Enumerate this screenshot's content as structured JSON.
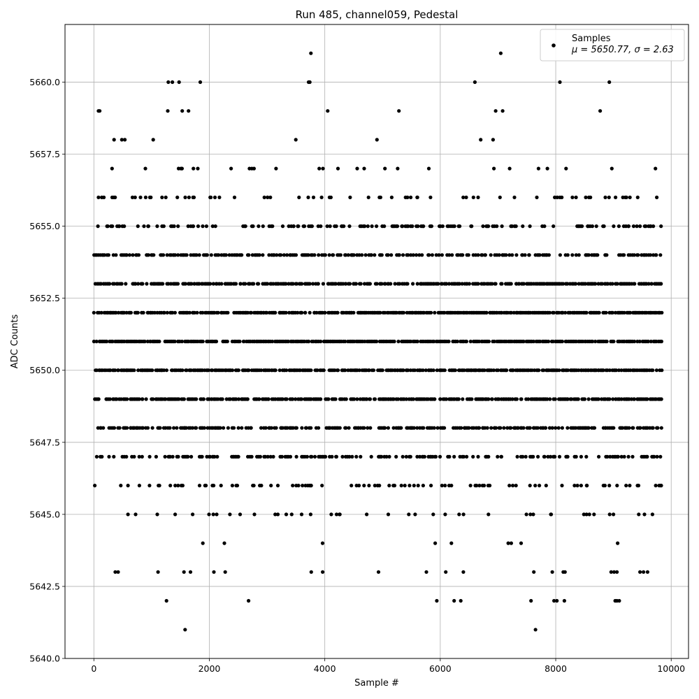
{
  "chart_data": {
    "type": "scatter",
    "title": "Run 485, channel059, Pedestal",
    "xlabel": "Sample #",
    "ylabel": "ADC Counts",
    "xlim": [
      -500,
      10300
    ],
    "ylim": [
      5640.0,
      5662.0
    ],
    "x_ticks": [
      0,
      2000,
      4000,
      6000,
      8000,
      10000
    ],
    "x_tick_labels": [
      "0",
      "2000",
      "4000",
      "6000",
      "8000",
      "10000"
    ],
    "y_ticks": [
      5640.0,
      5642.5,
      5645.0,
      5647.5,
      5650.0,
      5652.5,
      5655.0,
      5657.5,
      5660.0
    ],
    "y_tick_labels": [
      "5640.0",
      "5642.5",
      "5645.0",
      "5647.5",
      "5650.0",
      "5652.5",
      "5655.0",
      "5657.5",
      "5660.0"
    ],
    "grid": true,
    "legend_position": "top-right",
    "series": [
      {
        "name": "Samples",
        "stats": "μ = 5650.77, σ = 2.63",
        "color": "#000000",
        "marker": "circle",
        "n_samples": 9830,
        "x_range": [
          0,
          9830
        ],
        "mean": 5650.77,
        "std": 2.63,
        "value_levels": [
          {
            "y": 5661,
            "density": 0.002
          },
          {
            "y": 5660,
            "density": 0.005
          },
          {
            "y": 5659,
            "density": 0.01
          },
          {
            "y": 5658,
            "density": 0.04
          },
          {
            "y": 5657,
            "density": 0.09
          },
          {
            "y": 5656,
            "density": 0.18
          },
          {
            "y": 5655,
            "density": 0.35
          },
          {
            "y": 5654,
            "density": 0.6
          },
          {
            "y": 5653,
            "density": 0.85
          },
          {
            "y": 5652,
            "density": 1.0
          },
          {
            "y": 5651,
            "density": 1.0
          },
          {
            "y": 5650,
            "density": 1.0
          },
          {
            "y": 5649,
            "density": 0.9
          },
          {
            "y": 5648,
            "density": 0.7
          },
          {
            "y": 5647,
            "density": 0.45
          },
          {
            "y": 5646,
            "density": 0.25
          },
          {
            "y": 5645,
            "density": 0.1
          },
          {
            "y": 5644,
            "density": 0.04
          },
          {
            "y": 5643,
            "density": 0.015
          },
          {
            "y": 5642,
            "density": 0.006
          },
          {
            "y": 5641,
            "density": 0.001
          }
        ],
        "outliers": [
          {
            "x": 3760,
            "y": 5661
          },
          {
            "x": 1290,
            "y": 5660
          },
          {
            "x": 1360,
            "y": 5660
          },
          {
            "x": 3720,
            "y": 5660
          },
          {
            "x": 3740,
            "y": 5660
          },
          {
            "x": 6600,
            "y": 5660
          },
          {
            "x": 80,
            "y": 5659
          },
          {
            "x": 100,
            "y": 5659
          },
          {
            "x": 1280,
            "y": 5659
          },
          {
            "x": 1530,
            "y": 5659
          },
          {
            "x": 1640,
            "y": 5659
          },
          {
            "x": 4050,
            "y": 5659
          },
          {
            "x": 6960,
            "y": 5659
          },
          {
            "x": 7080,
            "y": 5659
          },
          {
            "x": 8770,
            "y": 5659
          },
          {
            "x": 2680,
            "y": 5642
          },
          {
            "x": 5940,
            "y": 5642
          },
          {
            "x": 6240,
            "y": 5642
          },
          {
            "x": 7970,
            "y": 5642
          },
          {
            "x": 8020,
            "y": 5642
          },
          {
            "x": 8150,
            "y": 5642
          },
          {
            "x": 9030,
            "y": 5642
          },
          {
            "x": 9060,
            "y": 5642
          },
          {
            "x": 9100,
            "y": 5642
          },
          {
            "x": 7650,
            "y": 5641
          },
          {
            "x": 370,
            "y": 5643
          },
          {
            "x": 420,
            "y": 5643
          },
          {
            "x": 4930,
            "y": 5643
          },
          {
            "x": 5760,
            "y": 5643
          },
          {
            "x": 6400,
            "y": 5643
          },
          {
            "x": 7620,
            "y": 5643
          },
          {
            "x": 7940,
            "y": 5643
          },
          {
            "x": 8130,
            "y": 5643
          },
          {
            "x": 8160,
            "y": 5643
          },
          {
            "x": 8960,
            "y": 5643
          },
          {
            "x": 9010,
            "y": 5643
          },
          {
            "x": 9060,
            "y": 5643
          },
          {
            "x": 9460,
            "y": 5643
          },
          {
            "x": 9520,
            "y": 5643
          },
          {
            "x": 9590,
            "y": 5643
          }
        ]
      }
    ]
  }
}
